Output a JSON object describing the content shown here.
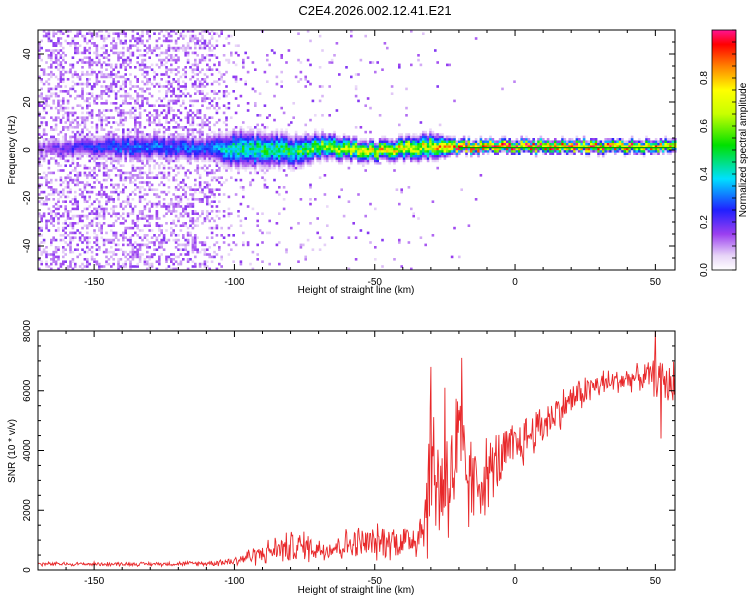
{
  "title": "C2E4.2026.002.12.41.E21",
  "chart_data": [
    {
      "type": "heatmap",
      "title": "C2E4.2026.002.12.41.E21",
      "xlabel": "Height of straight line (km)",
      "ylabel": "Frequency (Hz)",
      "xlim": [
        -170,
        57
      ],
      "ylim": [
        -50,
        50
      ],
      "xticks": [
        -150,
        -100,
        -50,
        0,
        50
      ],
      "yticks": [
        -40,
        -20,
        0,
        20,
        40
      ],
      "colorbar": {
        "label": "Normalized spectral amplitude",
        "range": [
          0,
          1
        ],
        "ticks": [
          0.0,
          0.2,
          0.4,
          0.6,
          0.8
        ]
      },
      "description_points": {
        "x_km": [
          -170,
          -140,
          -110,
          -100,
          -80,
          -70,
          -50,
          -30,
          -20,
          0,
          20,
          30,
          57
        ],
        "band_center_hz": [
          0,
          1,
          0,
          0,
          -1,
          1,
          -1,
          1,
          1,
          1,
          1,
          1,
          1
        ],
        "band_halfwidth_hz": [
          3,
          4,
          4,
          6,
          5,
          4,
          3,
          4,
          2,
          2,
          2,
          2,
          2
        ],
        "peak_amplitude": [
          0.15,
          0.3,
          0.3,
          0.45,
          0.5,
          0.6,
          0.75,
          0.7,
          0.95,
          0.95,
          0.9,
          0.9,
          0.75
        ],
        "noise_density": [
          0.85,
          0.85,
          0.8,
          0.15,
          0.1,
          0.08,
          0.04,
          0.03,
          0.02,
          0.0,
          0.0,
          0.0,
          0.0
        ]
      }
    },
    {
      "type": "line",
      "xlabel": "Height of straight line (km)",
      "ylabel": "SNR (10 * v/v)",
      "xlim": [
        -170,
        57
      ],
      "ylim": [
        0,
        8000
      ],
      "xticks": [
        -150,
        -100,
        -50,
        0,
        50
      ],
      "yticks": [
        0,
        2000,
        4000,
        6000,
        8000
      ],
      "color": "#e8282a",
      "series": [
        {
          "name": "SNR",
          "x": [
            -170,
            -150,
            -130,
            -110,
            -100,
            -95,
            -90,
            -85,
            -80,
            -75,
            -70,
            -65,
            -60,
            -55,
            -50,
            -45,
            -40,
            -35,
            -32,
            -30,
            -28,
            -25,
            -22,
            -20,
            -18,
            -15,
            -10,
            -5,
            0,
            5,
            10,
            15,
            20,
            25,
            30,
            35,
            40,
            45,
            50,
            55,
            57
          ],
          "values": [
            200,
            200,
            200,
            220,
            300,
            450,
            550,
            700,
            750,
            800,
            700,
            750,
            850,
            900,
            900,
            1000,
            950,
            1100,
            1800,
            3500,
            3000,
            2800,
            3500,
            3800,
            3200,
            2800,
            3200,
            3700,
            4100,
            4500,
            4900,
            5300,
            5700,
            6000,
            6200,
            6300,
            6400,
            6450,
            6500,
            6200,
            6300
          ],
          "spread": [
            80,
            80,
            80,
            100,
            200,
            350,
            450,
            550,
            650,
            650,
            500,
            550,
            650,
            700,
            700,
            750,
            750,
            900,
            2000,
            3200,
            2800,
            2500,
            3200,
            3300,
            2500,
            1800,
            1500,
            1300,
            1100,
            1000,
            900,
            800,
            700,
            650,
            600,
            550,
            500,
            500,
            800,
            900,
            900
          ],
          "peaks": [
            {
              "x": -30,
              "y": 6800
            },
            {
              "x": -25,
              "y": 6100
            },
            {
              "x": -19,
              "y": 7100
            },
            {
              "x": 50,
              "y": 8000
            },
            {
              "x": 52,
              "y": 4400
            }
          ]
        }
      ]
    }
  ]
}
